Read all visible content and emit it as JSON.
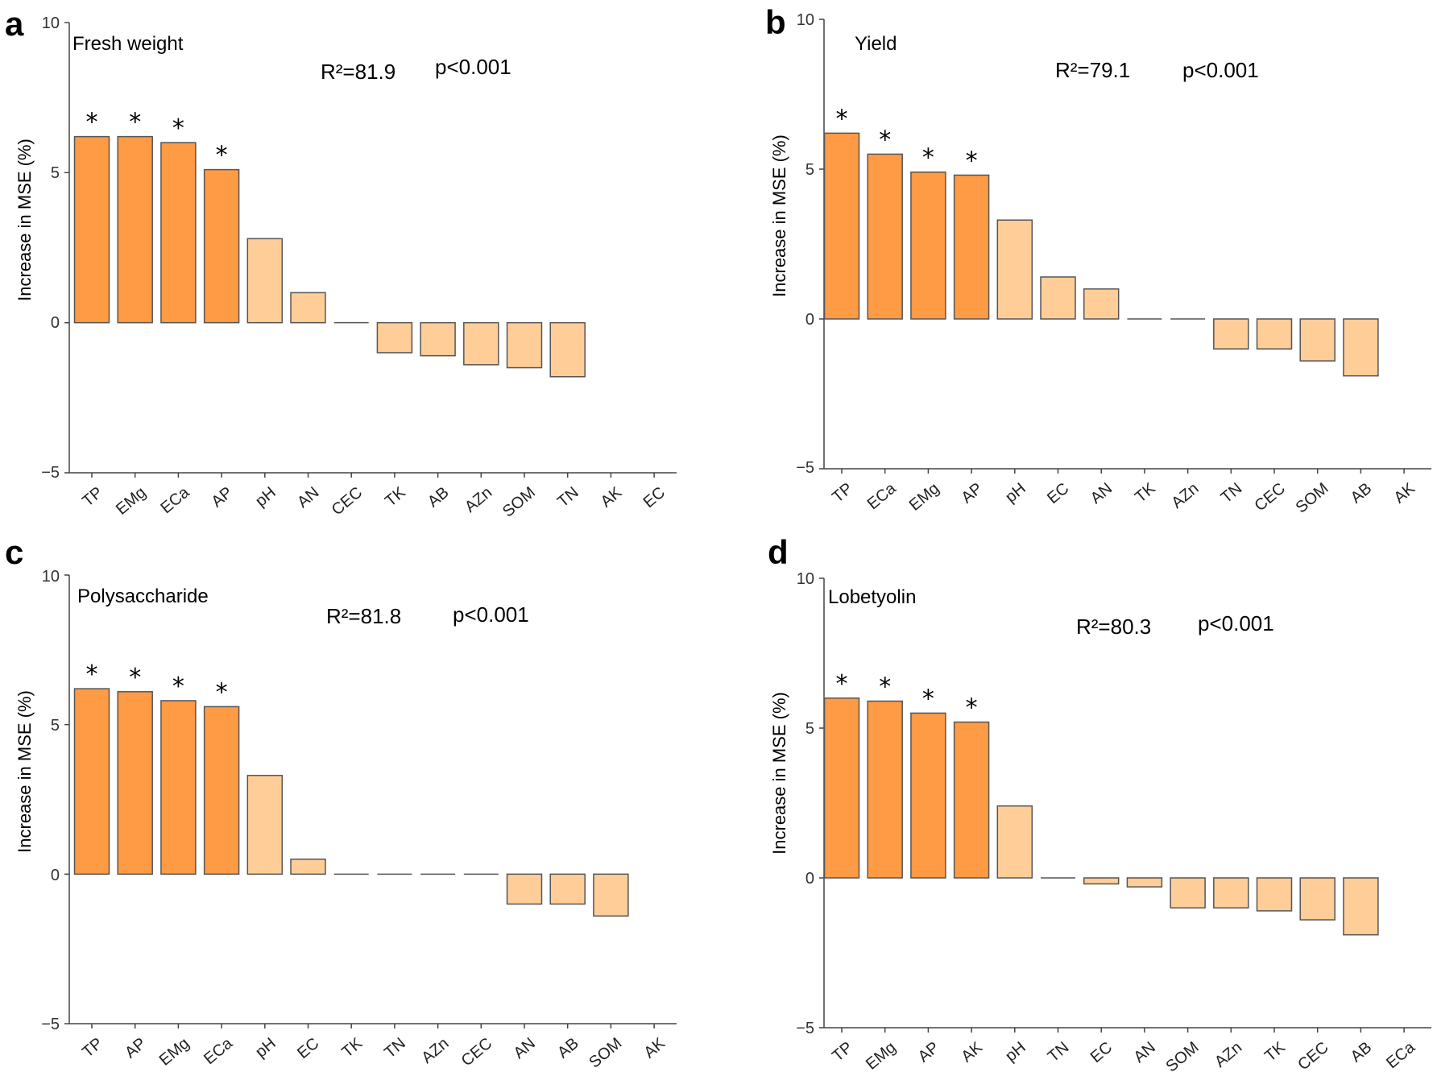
{
  "figure": {
    "colors": {
      "significant": "#FF9A45",
      "nonsignificant": "#FFCE98",
      "outline": "#555555"
    },
    "y_axis_label": "Increase in MSE (%)"
  },
  "chart_data": [
    {
      "panel": "a",
      "type": "bar",
      "title": "Fresh weight",
      "r2_text": "R²=81.9",
      "p_text": "p<0.001",
      "ylabel": "Increase in MSE (%)",
      "ylim": [
        -5,
        10
      ],
      "yticks": [
        "10",
        "5",
        "0",
        "−5"
      ],
      "categories": [
        "TP",
        "EMg",
        "ECa",
        "AP",
        "pH",
        "AN",
        "CEC",
        "TK",
        "AB",
        "AZn",
        "SOM",
        "TN",
        "AK",
        "EC"
      ],
      "values": [
        6.2,
        6.2,
        6.0,
        5.1,
        2.8,
        1.0,
        0.0,
        -1.0,
        -1.1,
        -1.4,
        -1.5,
        -1.8,
        null,
        null
      ],
      "significant": [
        true,
        true,
        true,
        true,
        false,
        false,
        false,
        false,
        false,
        false,
        false,
        false,
        false,
        false
      ]
    },
    {
      "panel": "b",
      "type": "bar",
      "title": "Yield",
      "r2_text": "R²=79.1",
      "p_text": "p<0.001",
      "ylabel": "Increase in MSE (%)",
      "ylim": [
        -5,
        10
      ],
      "yticks": [
        "10",
        "5",
        "0",
        "−5"
      ],
      "categories": [
        "TP",
        "ECa",
        "EMg",
        "AP",
        "pH",
        "EC",
        "AN",
        "TK",
        "AZn",
        "TN",
        "CEC",
        "SOM",
        "AB",
        "AK"
      ],
      "values": [
        6.2,
        5.5,
        4.9,
        4.8,
        3.3,
        1.4,
        1.0,
        0.0,
        0.0,
        -1.0,
        -1.0,
        -1.4,
        -1.9,
        null
      ],
      "significant": [
        true,
        true,
        true,
        true,
        false,
        false,
        false,
        false,
        false,
        false,
        false,
        false,
        false,
        false
      ]
    },
    {
      "panel": "c",
      "type": "bar",
      "title": "Polysaccharide",
      "r2_text": "R²=81.8",
      "p_text": "p<0.001",
      "ylabel": "Increase in MSE (%)",
      "ylim": [
        -5,
        10
      ],
      "yticks": [
        "10",
        "5",
        "0",
        "−5"
      ],
      "categories": [
        "TP",
        "AP",
        "EMg",
        "ECa",
        "pH",
        "EC",
        "TK",
        "TN",
        "AZn",
        "CEC",
        "AN",
        "AB",
        "SOM",
        "AK"
      ],
      "values": [
        6.2,
        6.1,
        5.8,
        5.6,
        3.3,
        0.5,
        0.0,
        0.0,
        0.0,
        0.0,
        -1.0,
        -1.0,
        -1.4,
        null
      ],
      "significant": [
        true,
        true,
        true,
        true,
        false,
        false,
        false,
        false,
        false,
        false,
        false,
        false,
        false,
        false
      ]
    },
    {
      "panel": "d",
      "type": "bar",
      "title": "Lobetyolin",
      "r2_text": "R²=80.3",
      "p_text": "p<0.001",
      "ylabel": "Increase in MSE (%)",
      "ylim": [
        -5,
        10
      ],
      "yticks": [
        "10",
        "5",
        "0",
        "−5"
      ],
      "categories": [
        "TP",
        "EMg",
        "AP",
        "AK",
        "pH",
        "TN",
        "EC",
        "AN",
        "SOM",
        "AZn",
        "TK",
        "CEC",
        "AB",
        "ECa"
      ],
      "values": [
        6.0,
        5.9,
        5.5,
        5.2,
        2.4,
        0.0,
        -0.2,
        -0.3,
        -1.0,
        -1.0,
        -1.1,
        -1.4,
        -1.9,
        null
      ],
      "significant": [
        true,
        true,
        true,
        true,
        false,
        false,
        false,
        false,
        false,
        false,
        false,
        false,
        false,
        false
      ]
    }
  ]
}
